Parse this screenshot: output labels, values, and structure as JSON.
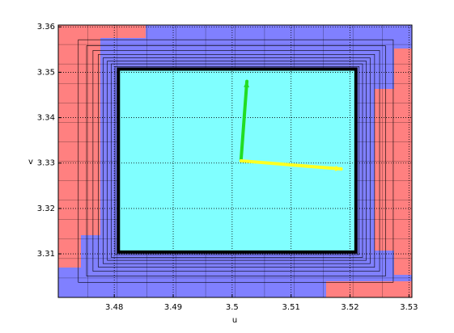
{
  "chart_data": {
    "type": "quiver",
    "xlabel": "u",
    "ylabel": "v",
    "xlim": [
      3.4705,
      3.5305
    ],
    "ylim": [
      3.3004,
      3.3604
    ],
    "xticks": [
      3.48,
      3.49,
      3.5,
      3.51,
      3.52,
      3.53
    ],
    "yticks": [
      3.31,
      3.32,
      3.33,
      3.34,
      3.35,
      3.36
    ],
    "grid": true,
    "region": {
      "x": [
        3.4807,
        3.521
      ],
      "y": [
        3.3104,
        3.3507
      ],
      "color": "#80ffff"
    },
    "arrows": [
      {
        "color": "#22dd22",
        "x": [
          3.5015,
          3.5025
        ],
        "y": [
          3.3305,
          3.348
        ]
      },
      {
        "color": "#ffff22",
        "x": [
          3.5015,
          3.5185
        ],
        "y": [
          3.3305,
          3.3287
        ]
      }
    ]
  }
}
